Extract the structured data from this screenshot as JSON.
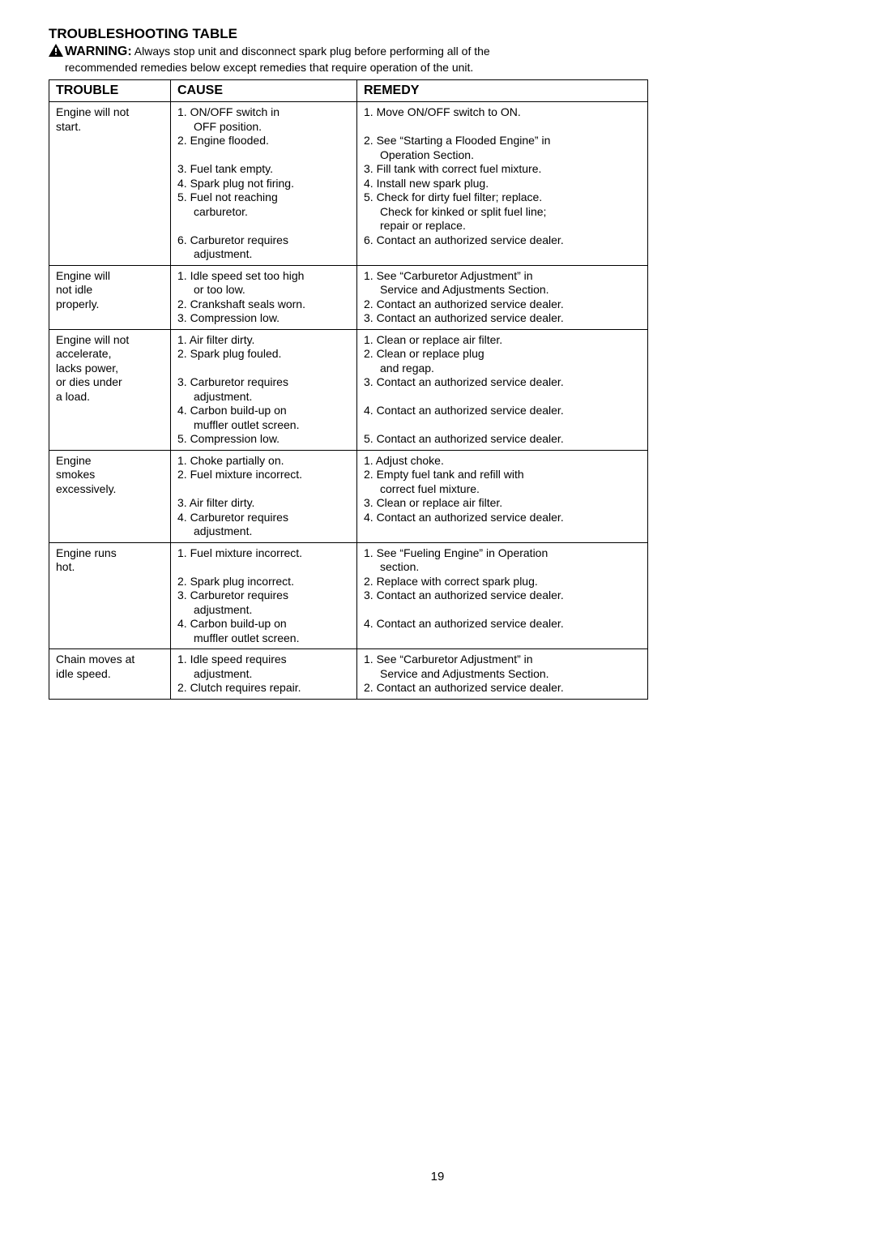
{
  "title": "TROUBLESHOOTING TABLE",
  "warning_label": "WARNING:",
  "warning_text_1": "Always stop unit and disconnect spark plug before performing all of the",
  "warning_text_2": "recommended remedies below except remedies that require operation of the unit.",
  "headers": {
    "trouble": "TROUBLE",
    "cause": "CAUSE",
    "remedy": "REMEDY"
  },
  "rows": [
    {
      "trouble": [
        "Engine will not",
        "start."
      ],
      "cause": [
        {
          "t": "1. ON/OFF switch in",
          "indent": 0
        },
        {
          "t": "OFF position.",
          "indent": 1
        },
        {
          "t": "2. Engine flooded.",
          "indent": 0
        },
        {
          "t": " ",
          "indent": 0
        },
        {
          "t": "3. Fuel tank empty.",
          "indent": 0
        },
        {
          "t": "4. Spark plug not firing.",
          "indent": 0
        },
        {
          "t": "5. Fuel not reaching",
          "indent": 0
        },
        {
          "t": "carburetor.",
          "indent": 1
        },
        {
          "t": " ",
          "indent": 0
        },
        {
          "t": "6. Carburetor requires",
          "indent": 0
        },
        {
          "t": "adjustment.",
          "indent": 1
        }
      ],
      "remedy": [
        {
          "t": "1. Move ON/OFF switch to ON.",
          "indent": 0
        },
        {
          "t": " ",
          "indent": 0
        },
        {
          "t": "2. See “Starting a Flooded Engine” in",
          "indent": 0
        },
        {
          "t": "Operation Section.",
          "indent": 1
        },
        {
          "t": "3. Fill tank with correct fuel mixture.",
          "indent": 0
        },
        {
          "t": "4. Install new spark plug.",
          "indent": 0
        },
        {
          "t": "5. Check for dirty fuel filter; replace.",
          "indent": 0
        },
        {
          "t": "Check for kinked or split fuel line;",
          "indent": 1
        },
        {
          "t": "repair or replace.",
          "indent": 1
        },
        {
          "t": "6. Contact an authorized service dealer.",
          "indent": 0
        }
      ]
    },
    {
      "trouble": [
        "Engine will",
        "not idle",
        "properly."
      ],
      "cause": [
        {
          "t": "1. Idle speed set too high",
          "indent": 0
        },
        {
          "t": "or too low.",
          "indent": 1
        },
        {
          "t": "2. Crankshaft seals worn.",
          "indent": 0
        },
        {
          "t": "3. Compression low.",
          "indent": 0
        }
      ],
      "remedy": [
        {
          "t": "1. See “Carburetor Adjustment” in",
          "indent": 0
        },
        {
          "t": "Service and Adjustments Section.",
          "indent": 1
        },
        {
          "t": "2. Contact an authorized service dealer.",
          "indent": 0
        },
        {
          "t": "3. Contact an authorized service dealer.",
          "indent": 0
        }
      ]
    },
    {
      "trouble": [
        "Engine will not",
        "accelerate,",
        "lacks power,",
        "or dies under",
        "a load."
      ],
      "cause": [
        {
          "t": "1. Air filter dirty.",
          "indent": 0
        },
        {
          "t": "2. Spark plug fouled.",
          "indent": 0
        },
        {
          "t": " ",
          "indent": 0
        },
        {
          "t": "3. Carburetor requires",
          "indent": 0
        },
        {
          "t": "adjustment.",
          "indent": 1
        },
        {
          "t": "4. Carbon build-up on",
          "indent": 0
        },
        {
          "t": "muffler outlet screen.",
          "indent": 1
        },
        {
          "t": "5. Compression low.",
          "indent": 0
        }
      ],
      "remedy": [
        {
          "t": "1. Clean or replace air filter.",
          "indent": 0
        },
        {
          "t": "2. Clean or replace plug",
          "indent": 0
        },
        {
          "t": "and regap.",
          "indent": 1
        },
        {
          "t": "3. Contact an authorized service dealer.",
          "indent": 0
        },
        {
          "t": " ",
          "indent": 0
        },
        {
          "t": "4. Contact an authorized service dealer.",
          "indent": 0
        },
        {
          "t": " ",
          "indent": 0
        },
        {
          "t": "5. Contact an authorized service dealer.",
          "indent": 0
        }
      ]
    },
    {
      "trouble": [
        "Engine",
        "smokes",
        "excessively."
      ],
      "cause": [
        {
          "t": "1. Choke partially on.",
          "indent": 0
        },
        {
          "t": "2. Fuel mixture incorrect.",
          "indent": 0
        },
        {
          "t": " ",
          "indent": 0
        },
        {
          "t": "3.  Air filter dirty.",
          "indent": 0
        },
        {
          "t": "4. Carburetor requires",
          "indent": 0
        },
        {
          "t": "adjustment.",
          "indent": 1
        }
      ],
      "remedy": [
        {
          "t": "1. Adjust choke.",
          "indent": 0
        },
        {
          "t": "2. Empty fuel tank and refill with",
          "indent": 0
        },
        {
          "t": "correct fuel mixture.",
          "indent": 1
        },
        {
          "t": "3. Clean or replace air filter.",
          "indent": 0
        },
        {
          "t": "4. Contact an authorized service dealer.",
          "indent": 0
        }
      ]
    },
    {
      "trouble": [
        "Engine runs",
        "hot."
      ],
      "cause": [
        {
          "t": "1. Fuel mixture incorrect.",
          "indent": 0
        },
        {
          "t": " ",
          "indent": 0
        },
        {
          "t": "2. Spark plug incorrect.",
          "indent": 0
        },
        {
          "t": "3. Carburetor requires",
          "indent": 0
        },
        {
          "t": "adjustment.",
          "indent": 1
        },
        {
          "t": "4. Carbon build-up on",
          "indent": 0
        },
        {
          "t": "muffler outlet screen.",
          "indent": 1
        }
      ],
      "remedy": [
        {
          "t": "1. See “Fueling Engine” in Operation",
          "indent": 0
        },
        {
          "t": "section.",
          "indent": 1
        },
        {
          "t": "2. Replace with correct spark plug.",
          "indent": 0
        },
        {
          "t": "3. Contact an authorized service dealer.",
          "indent": 0
        },
        {
          "t": " ",
          "indent": 0
        },
        {
          "t": "4. Contact an authorized service dealer.",
          "indent": 0
        }
      ]
    },
    {
      "trouble": [
        "Chain moves at",
        "idle speed."
      ],
      "cause": [
        {
          "t": "1. Idle speed requires",
          "indent": 0
        },
        {
          "t": "adjustment.",
          "indent": 1
        },
        {
          "t": "2. Clutch requires repair.",
          "indent": 0
        }
      ],
      "remedy": [
        {
          "t": "1. See “Carburetor Adjustment” in",
          "indent": 0
        },
        {
          "t": "Service and Adjustments Section.",
          "indent": 1
        },
        {
          "t": "2. Contact an authorized service dealer.",
          "indent": 0
        }
      ]
    }
  ],
  "page_number": "19"
}
